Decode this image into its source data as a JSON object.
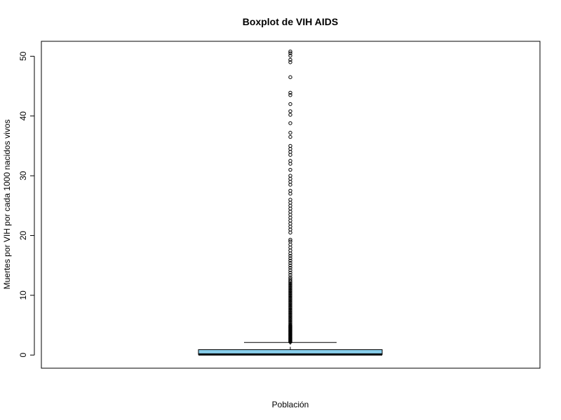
{
  "chart_data": {
    "type": "boxplot",
    "title": "Boxplot de VIH AIDS",
    "xlabel": "Población",
    "ylabel": "Muertes por VIH por cada 1000 nacidos vivos",
    "ylim": [
      -2.2,
      52.5
    ],
    "yticks": [
      0,
      10,
      20,
      30,
      40,
      50
    ],
    "grid": false,
    "legend": "none",
    "colors": {
      "box_fill": "#87CEEB",
      "stroke": "#000000"
    },
    "box": {
      "min": 0.1,
      "q1": 0.1,
      "median": 0.1,
      "q3": 0.9,
      "whisker_low": 0.1,
      "whisker_high": 2.1
    },
    "outliers": [
      2.2,
      2.3,
      2.4,
      2.5,
      2.6,
      2.7,
      2.8,
      2.9,
      3.0,
      3.1,
      3.2,
      3.3,
      3.4,
      3.5,
      3.6,
      3.7,
      3.8,
      3.9,
      4.0,
      4.1,
      4.2,
      4.3,
      4.4,
      4.5,
      4.6,
      4.7,
      4.8,
      4.9,
      5.0,
      5.2,
      5.4,
      5.6,
      5.8,
      6.0,
      6.2,
      6.4,
      6.6,
      6.8,
      7.0,
      7.2,
      7.4,
      7.6,
      7.8,
      8.0,
      8.2,
      8.4,
      8.6,
      8.8,
      9.0,
      9.2,
      9.4,
      9.6,
      9.8,
      10.0,
      10.2,
      10.4,
      10.6,
      10.8,
      11.0,
      11.2,
      11.4,
      11.6,
      11.8,
      12.0,
      12.2,
      12.4,
      12.7,
      13.0,
      13.4,
      13.8,
      14.2,
      14.6,
      15.0,
      15.4,
      15.8,
      16.2,
      16.6,
      17.0,
      17.5,
      18.0,
      18.5,
      19.0,
      19.3,
      20.5,
      21.0,
      21.5,
      22.0,
      22.5,
      23.0,
      23.5,
      24.0,
      24.5,
      25.0,
      25.5,
      26.0,
      27.0,
      27.5,
      28.5,
      29.0,
      29.5,
      30.0,
      31.0,
      32.0,
      32.5,
      33.5,
      34.0,
      34.5,
      35.0,
      36.5,
      37.2,
      38.8,
      40.2,
      40.8,
      42.0,
      43.5,
      43.9,
      46.5,
      49.0,
      49.4,
      50.1,
      50.5,
      50.8
    ]
  }
}
